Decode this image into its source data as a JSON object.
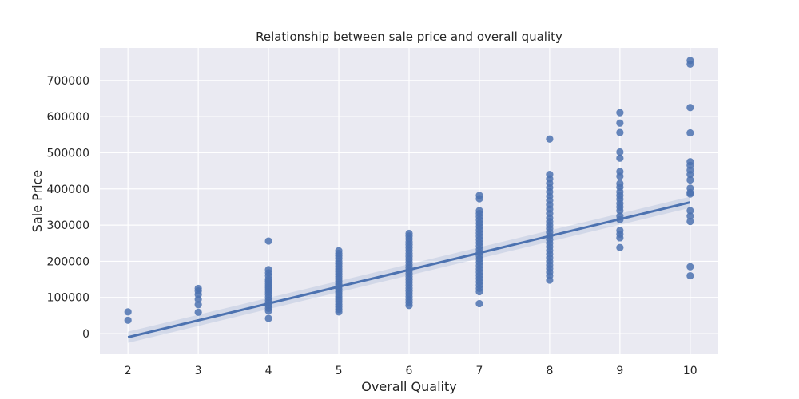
{
  "chart_data": {
    "type": "scatter",
    "title": "Relationship between sale price and overall quality",
    "xlabel": "Overall Quality",
    "ylabel": "Sale Price",
    "xlim": [
      1.6,
      10.4
    ],
    "ylim": [
      -55000,
      790000
    ],
    "xticks": [
      2,
      3,
      4,
      5,
      6,
      7,
      8,
      9,
      10
    ],
    "yticks": [
      0,
      100000,
      200000,
      300000,
      400000,
      500000,
      600000,
      700000
    ],
    "grid": true,
    "colors": {
      "background": "#eaeaf2",
      "grid": "#ffffff",
      "points": "#4c72b0",
      "line": "#4c72b0"
    },
    "regression": {
      "x": [
        2,
        10
      ],
      "y": [
        -10000,
        363000
      ]
    },
    "points": [
      {
        "x": 2,
        "y": [
          60000,
          37000
        ]
      },
      {
        "x": 3,
        "y": [
          125000,
          118000,
          108000,
          95000,
          80000,
          59000
        ]
      },
      {
        "x": 4,
        "y": [
          256000,
          177000,
          168000,
          160000,
          150000,
          144000,
          138000,
          132000,
          127000,
          121000,
          115000,
          108000,
          100000,
          92000,
          85000,
          78000,
          70000,
          63000,
          42000
        ]
      },
      {
        "x": 5,
        "y": [
          229000,
          222000,
          215000,
          208000,
          200000,
          193000,
          186000,
          179000,
          172000,
          165000,
          158000,
          151000,
          144000,
          137000,
          130000,
          123000,
          116000,
          109000,
          102000,
          95000,
          88000,
          81000,
          74000,
          67000,
          60000
        ]
      },
      {
        "x": 6,
        "y": [
          277000,
          270000,
          262000,
          254000,
          246000,
          238000,
          230000,
          222000,
          214000,
          206000,
          198000,
          190000,
          182000,
          174000,
          166000,
          158000,
          150000,
          142000,
          134000,
          126000,
          118000,
          110000,
          102000,
          94000,
          86000,
          78000
        ]
      },
      {
        "x": 7,
        "y": [
          382000,
          373000,
          340000,
          332000,
          323000,
          314000,
          305000,
          296000,
          287000,
          278000,
          269000,
          260000,
          251000,
          242000,
          233000,
          224000,
          215000,
          206000,
          197000,
          188000,
          179000,
          170000,
          161000,
          152000,
          143000,
          134000,
          125000,
          116000,
          83000
        ]
      },
      {
        "x": 8,
        "y": [
          538000,
          440000,
          428000,
          416000,
          404000,
          392000,
          380000,
          368000,
          356000,
          344000,
          332000,
          320000,
          310000,
          300000,
          290000,
          280000,
          270000,
          260000,
          250000,
          240000,
          230000,
          220000,
          210000,
          200000,
          190000,
          180000,
          170000,
          160000,
          148000
        ]
      },
      {
        "x": 9,
        "y": [
          611000,
          582000,
          556000,
          502000,
          485000,
          448000,
          435000,
          415000,
          405000,
          392000,
          382000,
          372000,
          360000,
          350000,
          340000,
          325000,
          315000,
          285000,
          275000,
          265000,
          238000
        ]
      },
      {
        "x": 10,
        "y": [
          755000,
          745000,
          625000,
          555000,
          475000,
          465000,
          452000,
          440000,
          425000,
          402000,
          390000,
          386000,
          340000,
          325000,
          310000,
          185000,
          160000
        ]
      }
    ]
  }
}
